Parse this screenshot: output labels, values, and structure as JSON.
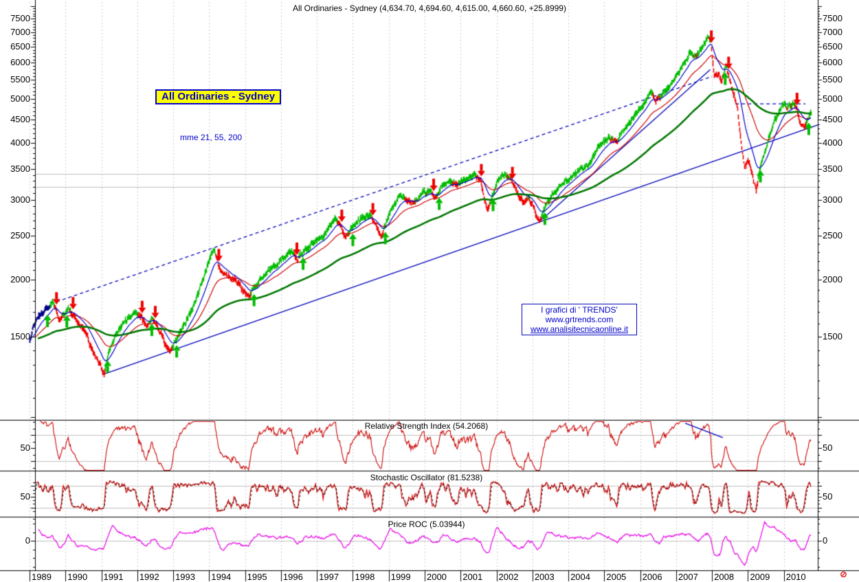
{
  "header": {
    "title": "All Ordinaries - Sydney (4,634.70, 4,694.60, 4,615.00, 4,660.60, +25.8999)"
  },
  "labels": {
    "instrument_box": "All Ordinaries - Sydney",
    "mme": "mme 21, 55, 200",
    "watermark_line1": "I grafici di ' TRENDS'",
    "watermark_line2": "www.grtrends.com",
    "watermark_line3": "www.analisitecnicaonline.it",
    "rsi_title": "Relative Strength Index (54.2068)",
    "stoch_title": "Stochastic Oscillator (81.5238)",
    "roc_title": "Price ROC (5.03944)",
    "logo_glyph": "⊘"
  },
  "axes": {
    "price_labels": [
      7500,
      7000,
      6500,
      6000,
      5500,
      5000,
      4500,
      4000,
      3500,
      3000,
      2500,
      2000,
      1500
    ],
    "years": [
      1989,
      1990,
      1991,
      1992,
      1993,
      1994,
      1995,
      1996,
      1997,
      1998,
      1999,
      2000,
      2001,
      2002,
      2003,
      2004,
      2005,
      2006,
      2007,
      2008,
      2009,
      2010
    ],
    "rsi_mid_label": "50",
    "stoch_mid_label": "50",
    "roc_mid_label": "0"
  },
  "chart_data": {
    "type": "bar",
    "title": "All Ordinaries - Sydney",
    "scale": "log",
    "xlim": [
      1989,
      2010.95
    ],
    "ylim": [
      990,
      8000
    ],
    "ohlc_last": {
      "open": 4634.7,
      "high": 4694.6,
      "low": 4615.0,
      "close": 4660.6,
      "change": 25.8999
    },
    "price_anchors": [
      [
        1989.0,
        1485
      ],
      [
        1989.08,
        1560
      ],
      [
        1989.25,
        1660
      ],
      [
        1989.45,
        1720
      ],
      [
        1989.62,
        1780
      ],
      [
        1989.72,
        1755
      ],
      [
        1989.82,
        1640
      ],
      [
        1989.95,
        1680
      ],
      [
        1990.08,
        1730
      ],
      [
        1990.2,
        1670
      ],
      [
        1990.4,
        1600
      ],
      [
        1990.55,
        1540
      ],
      [
        1990.7,
        1430
      ],
      [
        1990.85,
        1345
      ],
      [
        1991.0,
        1275
      ],
      [
        1991.06,
        1235
      ],
      [
        1991.18,
        1390
      ],
      [
        1991.35,
        1500
      ],
      [
        1991.5,
        1560
      ],
      [
        1991.65,
        1620
      ],
      [
        1991.8,
        1660
      ],
      [
        1991.95,
        1690
      ],
      [
        1992.1,
        1655
      ],
      [
        1992.25,
        1585
      ],
      [
        1992.42,
        1645
      ],
      [
        1992.58,
        1560
      ],
      [
        1992.75,
        1460
      ],
      [
        1992.92,
        1395
      ],
      [
        1993.08,
        1480
      ],
      [
        1993.25,
        1570
      ],
      [
        1993.45,
        1680
      ],
      [
        1993.65,
        1820
      ],
      [
        1993.85,
        2030
      ],
      [
        1994.05,
        2280
      ],
      [
        1994.13,
        2340
      ],
      [
        1994.3,
        2110
      ],
      [
        1994.48,
        2050
      ],
      [
        1994.65,
        2010
      ],
      [
        1994.82,
        1960
      ],
      [
        1995.0,
        1870
      ],
      [
        1995.1,
        1835
      ],
      [
        1995.28,
        1950
      ],
      [
        1995.5,
        2050
      ],
      [
        1995.72,
        2120
      ],
      [
        1995.92,
        2170
      ],
      [
        1996.1,
        2250
      ],
      [
        1996.28,
        2300
      ],
      [
        1996.45,
        2230
      ],
      [
        1996.62,
        2290
      ],
      [
        1996.8,
        2370
      ],
      [
        1997.0,
        2440
      ],
      [
        1997.18,
        2480
      ],
      [
        1997.35,
        2620
      ],
      [
        1997.52,
        2750
      ],
      [
        1997.7,
        2600
      ],
      [
        1997.8,
        2450
      ],
      [
        1997.95,
        2600
      ],
      [
        1998.12,
        2700
      ],
      [
        1998.3,
        2760
      ],
      [
        1998.48,
        2790
      ],
      [
        1998.65,
        2600
      ],
      [
        1998.78,
        2510
      ],
      [
        1998.92,
        2680
      ],
      [
        1999.1,
        2920
      ],
      [
        1999.28,
        3060
      ],
      [
        1999.45,
        3020
      ],
      [
        1999.62,
        2960
      ],
      [
        1999.8,
        3010
      ],
      [
        1999.95,
        3120
      ],
      [
        2000.12,
        3130
      ],
      [
        2000.3,
        3030
      ],
      [
        2000.5,
        3230
      ],
      [
        2000.68,
        3290
      ],
      [
        2000.85,
        3240
      ],
      [
        2001.02,
        3310
      ],
      [
        2001.2,
        3340
      ],
      [
        2001.4,
        3390
      ],
      [
        2001.55,
        3320
      ],
      [
        2001.7,
        2920
      ],
      [
        2001.78,
        2880
      ],
      [
        2001.9,
        3130
      ],
      [
        2002.05,
        3360
      ],
      [
        2002.22,
        3420
      ],
      [
        2002.4,
        3330
      ],
      [
        2002.58,
        3080
      ],
      [
        2002.72,
        2960
      ],
      [
        2002.88,
        3020
      ],
      [
        2003.02,
        2880
      ],
      [
        2003.18,
        2680
      ],
      [
        2003.35,
        2900
      ],
      [
        2003.55,
        3080
      ],
      [
        2003.75,
        3220
      ],
      [
        2003.95,
        3300
      ],
      [
        2004.15,
        3400
      ],
      [
        2004.35,
        3530
      ],
      [
        2004.55,
        3570
      ],
      [
        2004.75,
        3780
      ],
      [
        2004.95,
        4020
      ],
      [
        2005.15,
        4110
      ],
      [
        2005.32,
        4000
      ],
      [
        2005.52,
        4280
      ],
      [
        2005.72,
        4480
      ],
      [
        2005.9,
        4690
      ],
      [
        2006.1,
        4900
      ],
      [
        2006.28,
        5180
      ],
      [
        2006.42,
        4960
      ],
      [
        2006.6,
        5100
      ],
      [
        2006.8,
        5330
      ],
      [
        2007.0,
        5640
      ],
      [
        2007.18,
        5950
      ],
      [
        2007.38,
        6310
      ],
      [
        2007.55,
        6150
      ],
      [
        2007.7,
        6450
      ],
      [
        2007.88,
        6850
      ],
      [
        2007.96,
        6720
      ],
      [
        2008.06,
        5600
      ],
      [
        2008.16,
        5680
      ],
      [
        2008.26,
        5420
      ],
      [
        2008.38,
        5950
      ],
      [
        2008.55,
        5250
      ],
      [
        2008.7,
        4850
      ],
      [
        2008.8,
        4050
      ],
      [
        2008.9,
        3540
      ],
      [
        2009.02,
        3650
      ],
      [
        2009.12,
        3420
      ],
      [
        2009.21,
        3130
      ],
      [
        2009.35,
        3620
      ],
      [
        2009.52,
        3950
      ],
      [
        2009.68,
        4380
      ],
      [
        2009.82,
        4620
      ],
      [
        2009.96,
        4870
      ],
      [
        2010.1,
        4770
      ],
      [
        2010.25,
        4880
      ],
      [
        2010.33,
        4820
      ],
      [
        2010.45,
        4420
      ],
      [
        2010.55,
        4320
      ],
      [
        2010.65,
        4520
      ],
      [
        2010.74,
        4660
      ]
    ],
    "moving_averages": [
      {
        "label": "mme 21",
        "period": 21,
        "color": "#0000CC",
        "width": 1.2
      },
      {
        "label": "mme 55",
        "period": 55,
        "color": "#CC0000",
        "width": 1.2
      },
      {
        "label": "mme 200",
        "period": 200,
        "color": "#007700",
        "width": 2.6
      }
    ],
    "support_levels": [
      3425,
      3205
    ],
    "trendlines": [
      {
        "style": "dashed",
        "points": [
          [
            1989.75,
            1790
          ],
          [
            2008.0,
            5600
          ]
        ]
      },
      {
        "style": "solid",
        "points": [
          [
            1991.06,
            1240
          ],
          [
            2010.94,
            4380
          ]
        ]
      },
      {
        "style": "solid",
        "points": [
          [
            2003.18,
            2680
          ],
          [
            2007.95,
            5800
          ]
        ]
      },
      {
        "style": "dashed",
        "points": [
          [
            2008.65,
            4875
          ],
          [
            2010.6,
            4875
          ]
        ]
      }
    ],
    "signal_colors": {
      "up": "#00BB00",
      "down": "#EE0000",
      "neutral": "#00008B"
    },
    "panels": [
      {
        "id": "rsi",
        "title": "Relative Strength Index",
        "value": 54.2068,
        "period": 14,
        "levels": [
          70,
          30
        ],
        "mid": 50,
        "color": "#CC0000",
        "trendline": {
          "points": [
            [
              2007.25,
              88
            ],
            [
              2008.3,
              66
            ]
          ],
          "color": "#0000BB"
        }
      },
      {
        "id": "stoch",
        "title": "Stochastic Oscillator",
        "value": 81.5238,
        "levels": [
          80,
          20
        ],
        "mid": 50,
        "color": "#DD0000",
        "signal_color": "#000000"
      },
      {
        "id": "roc",
        "title": "Price ROC",
        "value": 5.03944,
        "period": 13,
        "levels": [
          0
        ],
        "color": "#E800E8"
      }
    ]
  }
}
